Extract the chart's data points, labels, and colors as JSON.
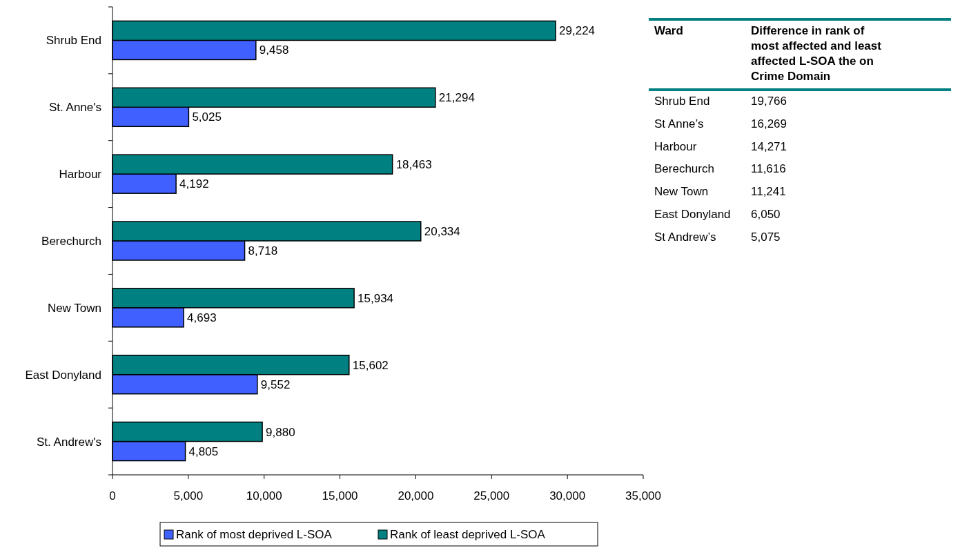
{
  "chart_data": [
    {
      "type": "bar",
      "orientation": "horizontal",
      "categories": [
        "Shrub End",
        "St. Anne's",
        "Harbour",
        "Berechurch",
        "New Town",
        "East Donyland",
        "St. Andrew's"
      ],
      "series": [
        {
          "name": "Rank of most deprived L-SOA",
          "color": "#4060ff",
          "values": [
            9458,
            5025,
            4192,
            8718,
            4693,
            9552,
            4805
          ],
          "value_labels": [
            "9,458",
            "5,025",
            "4,192",
            "8,718",
            "4,693",
            "9,552",
            "4,805"
          ]
        },
        {
          "name": "Rank of least deprived L-SOA",
          "color": "#008080",
          "values": [
            29224,
            21294,
            18463,
            20334,
            15934,
            15602,
            9880
          ],
          "value_labels": [
            "29,224",
            "21,294",
            "18,463",
            "20,334",
            "15,934",
            "15,602",
            "9,880"
          ]
        }
      ],
      "xlim": [
        0,
        35000
      ],
      "xticks": [
        0,
        {
          "value": 5000,
          "label": "5,000"
        },
        {
          "value": 10000,
          "label": "10,000"
        },
        {
          "value": 15000,
          "label": "15,000"
        },
        {
          "value": 20000,
          "label": "20,000"
        },
        {
          "value": 25000,
          "label": "25,000"
        },
        {
          "value": 30000,
          "label": "30,000"
        },
        {
          "value": 35000,
          "label": "35,000"
        }
      ],
      "legend": "bottom",
      "grid": false
    },
    {
      "type": "other",
      "xlabel": "Ward",
      "ylabel": "Difference in rank of most affected and least affected L-SOA the on Crime Domain",
      "categories": [
        "Shrub End",
        "St Anne’s",
        "Harbour",
        "Berechurch",
        "New Town",
        "East Donyland",
        "St Andrew’s"
      ],
      "value_labels": [
        "19,766",
        "16,269",
        "14,271",
        "11,616",
        "11,241",
        "6,050",
        "5,075"
      ]
    }
  ]
}
